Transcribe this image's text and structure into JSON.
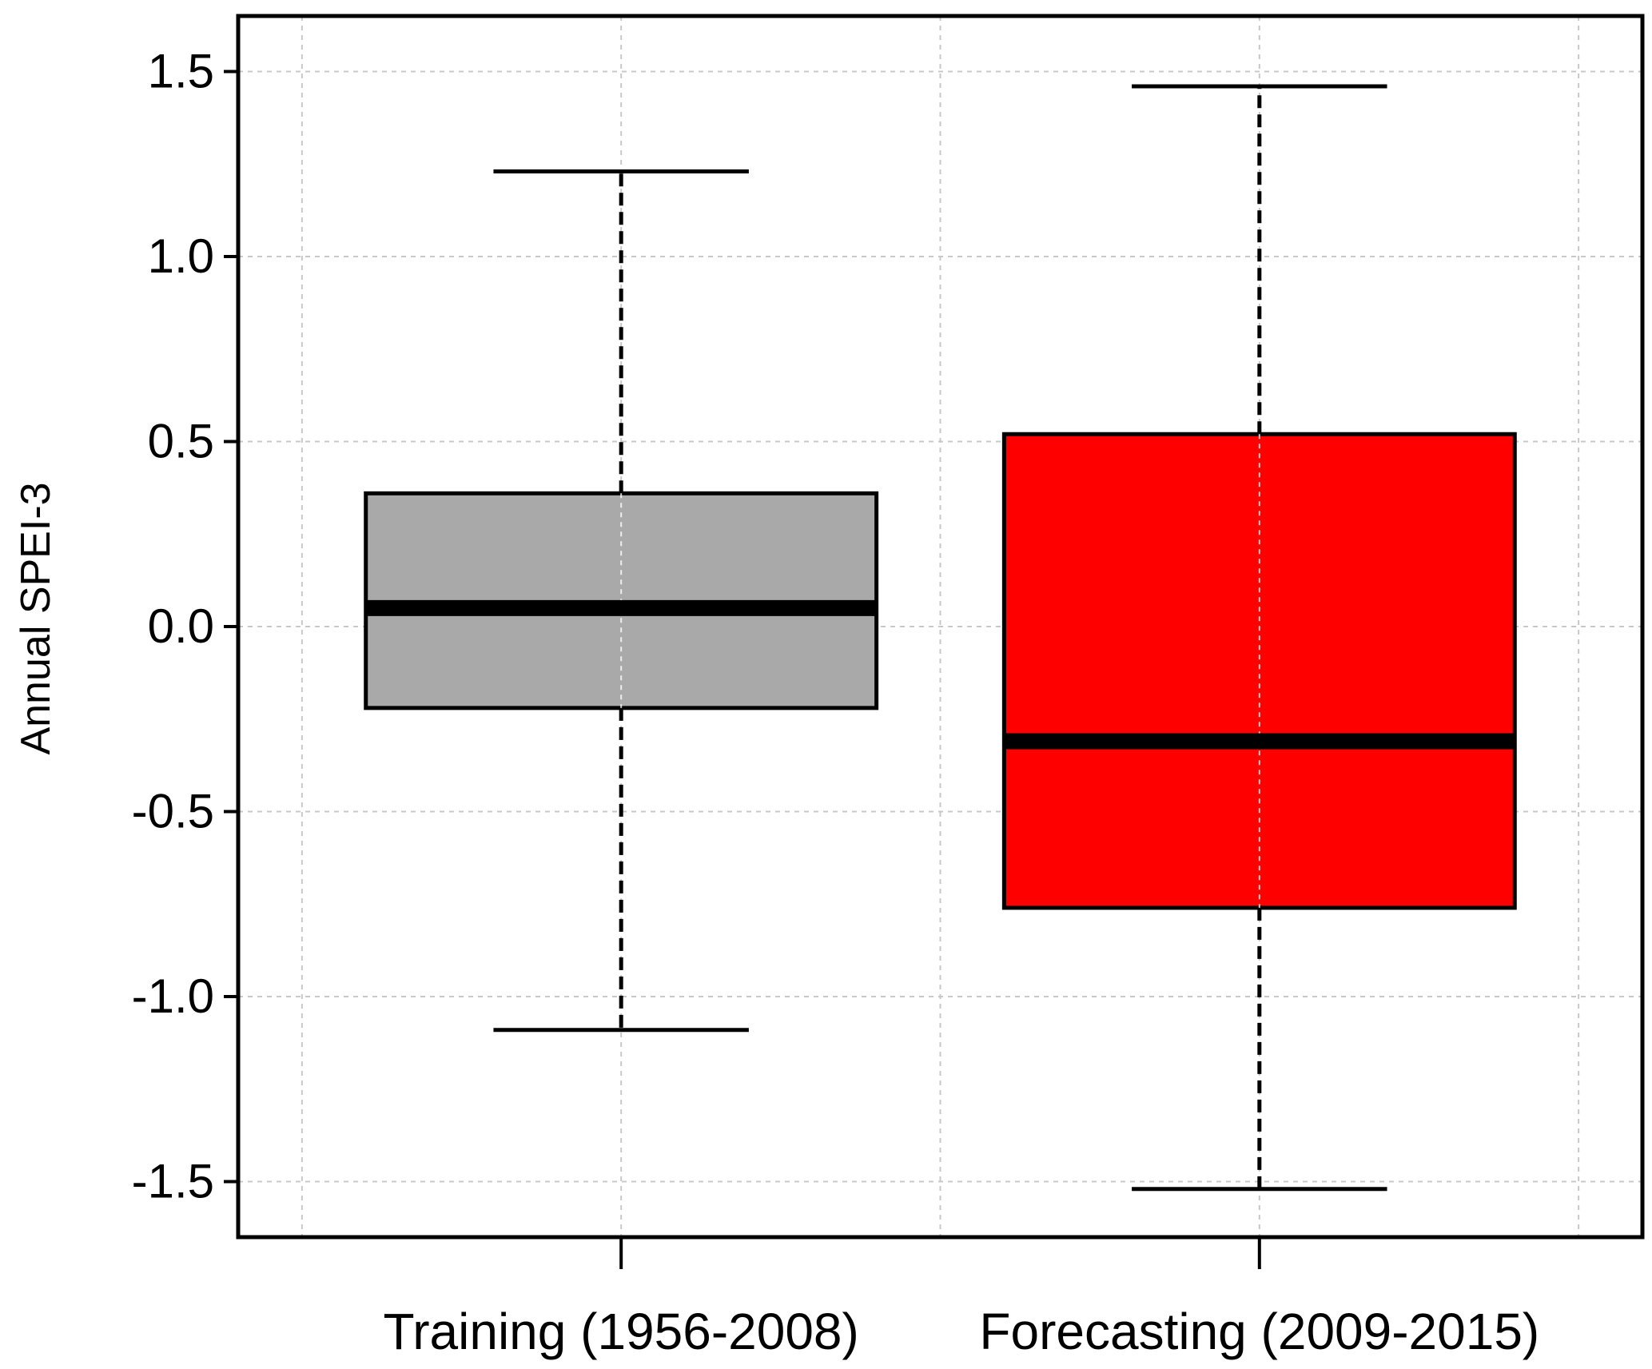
{
  "chart_data": {
    "type": "boxplot",
    "ylabel": "Annual SPEI-3",
    "ylim": [
      -1.65,
      1.65
    ],
    "yticks": [
      "1.5",
      "1.0",
      "0.5",
      "0.0",
      "-0.5",
      "-1.0",
      "-1.5"
    ],
    "grid": true,
    "categories": [
      "Training (1956-2008)",
      "Forecasting (2009-2015)"
    ],
    "boxes": [
      {
        "label": "Training (1956-2008)",
        "min": -1.09,
        "q1": -0.22,
        "median": 0.05,
        "q3": 0.36,
        "max": 1.23,
        "color": "#a9a9a9"
      },
      {
        "label": "Forecasting (2009-2015)",
        "min": -1.52,
        "q1": -0.76,
        "median": -0.31,
        "q3": 0.52,
        "max": 1.46,
        "color": "#ff0000"
      }
    ]
  }
}
